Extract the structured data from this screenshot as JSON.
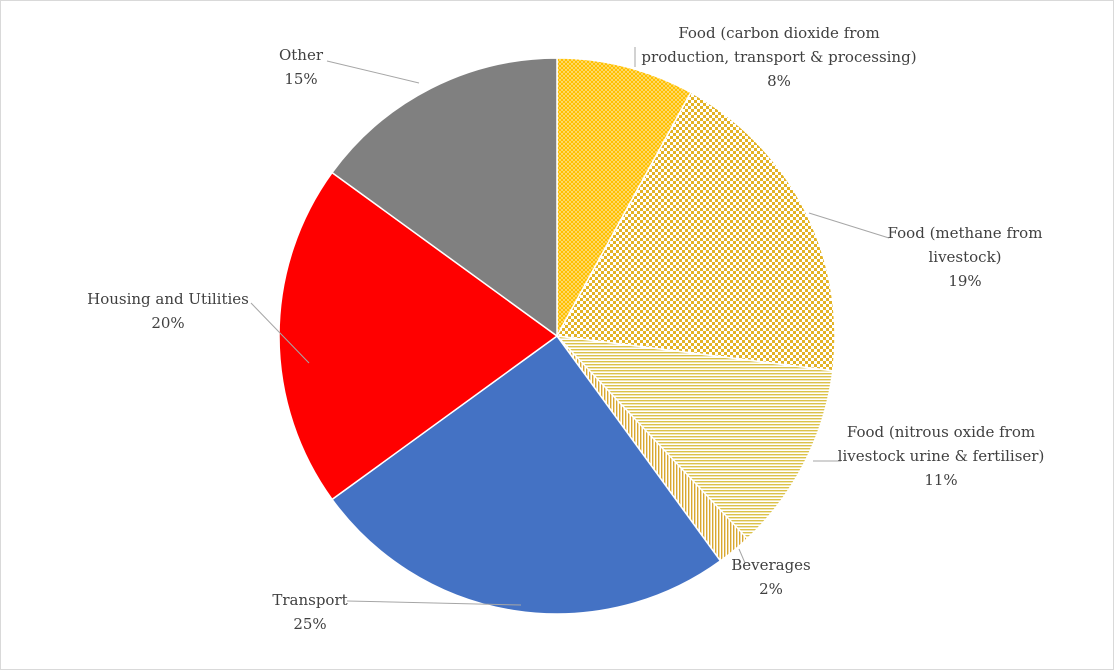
{
  "chart_data": {
    "type": "pie",
    "title": "",
    "slices": [
      {
        "name": "Food (carbon dioxide from production, transport & processing)",
        "label_lines": [
          "Food  (carbon dioxide from",
          "production, transport & processing)"
        ],
        "value": 8,
        "pct_label": "8%",
        "color": "#ffc000",
        "pattern": "dots"
      },
      {
        "name": "Food (methane from livestock)",
        "label_lines": [
          "Food  (methane from",
          "livestock)"
        ],
        "value": 19,
        "pct_label": "19%",
        "color": "#ebc64a",
        "pattern": "checker"
      },
      {
        "name": "Food (nitrous oxide from livestock urine & fertiliser)",
        "label_lines": [
          "Food  (nitrous oxide from",
          "livestock urine & fertiliser)"
        ],
        "value": 11,
        "pct_label": "11%",
        "color": "#e6d47a",
        "pattern": "hlines"
      },
      {
        "name": "Beverages",
        "label_lines": [
          "Beverages"
        ],
        "value": 2,
        "pct_label": "2%",
        "color": "#e0b84a",
        "pattern": "vlines"
      },
      {
        "name": "Transport",
        "label_lines": [
          "Transport"
        ],
        "value": 25,
        "pct_label": "25%",
        "color": "#4472c4",
        "pattern": "solid"
      },
      {
        "name": "Housing and Utilities",
        "label_lines": [
          "Housing and Utilities"
        ],
        "value": 20,
        "pct_label": "20%",
        "color": "#ff0000",
        "pattern": "solid"
      },
      {
        "name": "Other",
        "label_lines": [
          "Other"
        ],
        "value": 15,
        "pct_label": "15%",
        "color": "#808080",
        "pattern": "solid"
      }
    ]
  }
}
